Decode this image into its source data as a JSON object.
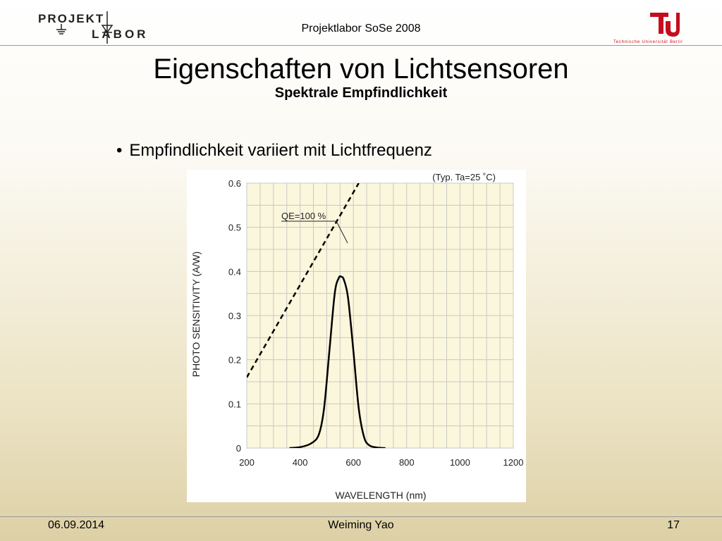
{
  "header": {
    "center_text": "Projektlabor SoSe 2008",
    "logo_left_text": "PROJEKT LABOR",
    "logo_right_text": "Technische Universität Berlin"
  },
  "slide": {
    "title": "Eigenschaften von Lichtsensoren",
    "subtitle": "Spektrale Empfindlichkeit",
    "bullets": [
      {
        "symbol": "•",
        "text": "Empfindlichkeit variiert mit Lichtfrequenz"
      }
    ]
  },
  "footer": {
    "date": "06.09.2014",
    "author": "Weiming Yao",
    "page": "17"
  },
  "chart_data": {
    "type": "line",
    "title": "",
    "note": "(Typ. Ta=25 ˚C)",
    "xlabel": "WAVELENGTH (nm)",
    "ylabel": "PHOTO SENSITIVITY (A/W)",
    "xlim": [
      200,
      1200
    ],
    "ylim": [
      0,
      0.6
    ],
    "xticks": [
      "200",
      "400",
      "600",
      "800",
      "1000",
      "1200"
    ],
    "yticks": [
      "0",
      "0.1",
      "0.2",
      "0.3",
      "0.4",
      "0.5",
      "0.6"
    ],
    "grid": true,
    "annotations": [
      {
        "text": "QE=100 %",
        "points_to": "dashed line"
      }
    ],
    "series": [
      {
        "name": "QE=100 %",
        "style": "dashed",
        "x": [
          200,
          620
        ],
        "y": [
          0.16,
          0.6
        ]
      },
      {
        "name": "",
        "style": "solid",
        "x": [
          360,
          400,
          440,
          470,
          490,
          510,
          530,
          545,
          555,
          565,
          580,
          600,
          620,
          640,
          660,
          690,
          720
        ],
        "y": [
          0,
          0.002,
          0.01,
          0.03,
          0.09,
          0.22,
          0.35,
          0.385,
          0.388,
          0.38,
          0.34,
          0.22,
          0.09,
          0.025,
          0.006,
          0.001,
          0
        ]
      }
    ],
    "colors": {
      "background": "#fbf7dc",
      "grid": "#c8c8c8",
      "line": "#000000"
    }
  }
}
